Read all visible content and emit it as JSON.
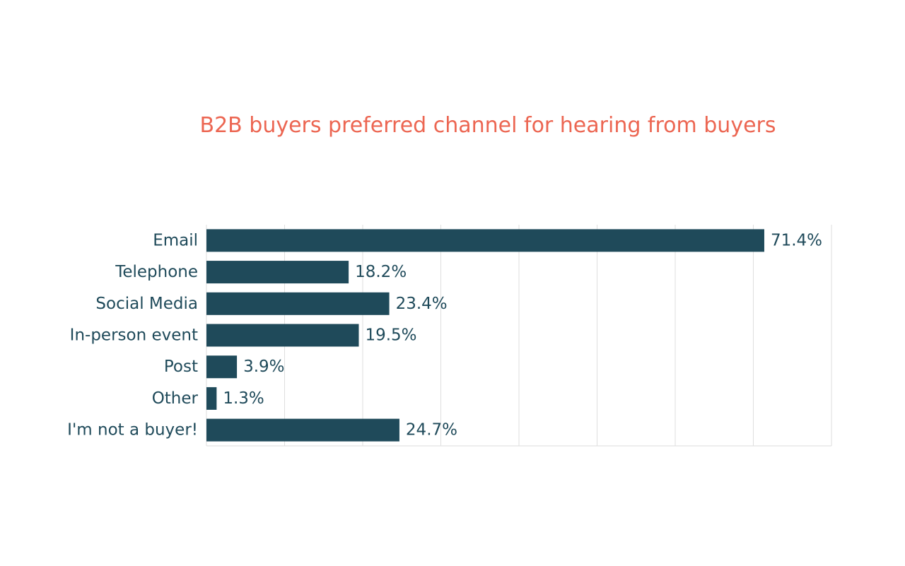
{
  "chart_data": {
    "type": "bar",
    "orientation": "horizontal",
    "title": "B2B buyers preferred channel for hearing from buyers",
    "categories": [
      "Email",
      "Telephone",
      "Social Media",
      "In-person event",
      "Post",
      "Other",
      "I'm not a buyer!"
    ],
    "values": [
      71.4,
      18.2,
      23.4,
      19.5,
      3.9,
      1.3,
      24.7
    ],
    "value_labels": [
      "71.4%",
      "18.2%",
      "23.4%",
      "19.5%",
      "3.9%",
      "1.3%",
      "24.7%"
    ],
    "xlim": [
      0,
      80
    ],
    "grid": true,
    "xlabel": "",
    "ylabel": ""
  },
  "colors": {
    "bar": "#1f4a5a",
    "title": "#ec6652",
    "text": "#1f4a5a",
    "grid": "#dedede"
  }
}
